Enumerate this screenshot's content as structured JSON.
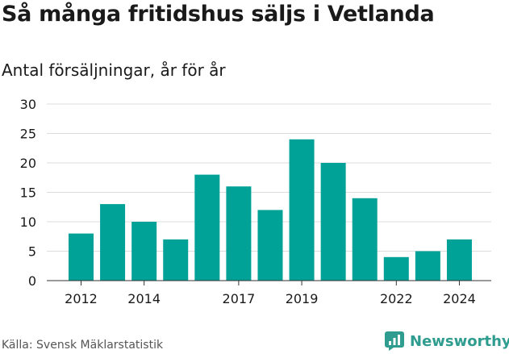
{
  "title": "Så många fritidshus säljs i Vetlanda",
  "subtitle": "Antal försäljningar, år för år",
  "source": "Källa: Svensk Mäklarstatistik",
  "brand": "Newsworthy",
  "colors": {
    "bar": "#00a298",
    "grid": "#dcdcdc",
    "axis": "#333333",
    "brand": "#2e9c8e"
  },
  "chart_data": {
    "type": "bar",
    "x": [
      2012,
      2013,
      2014,
      2015,
      2016,
      2017,
      2018,
      2019,
      2020,
      2021,
      2022,
      2023,
      2024
    ],
    "values": [
      8,
      13,
      10,
      7,
      18,
      16,
      12,
      24,
      20,
      14,
      4,
      5,
      7
    ],
    "x_tick_labels": [
      "2012",
      "2014",
      "2017",
      "2019",
      "2022",
      "2024"
    ],
    "y_ticks": [
      0,
      5,
      10,
      15,
      20,
      25,
      30
    ],
    "ylim": [
      0,
      30
    ],
    "grid": true,
    "legend": "none"
  }
}
